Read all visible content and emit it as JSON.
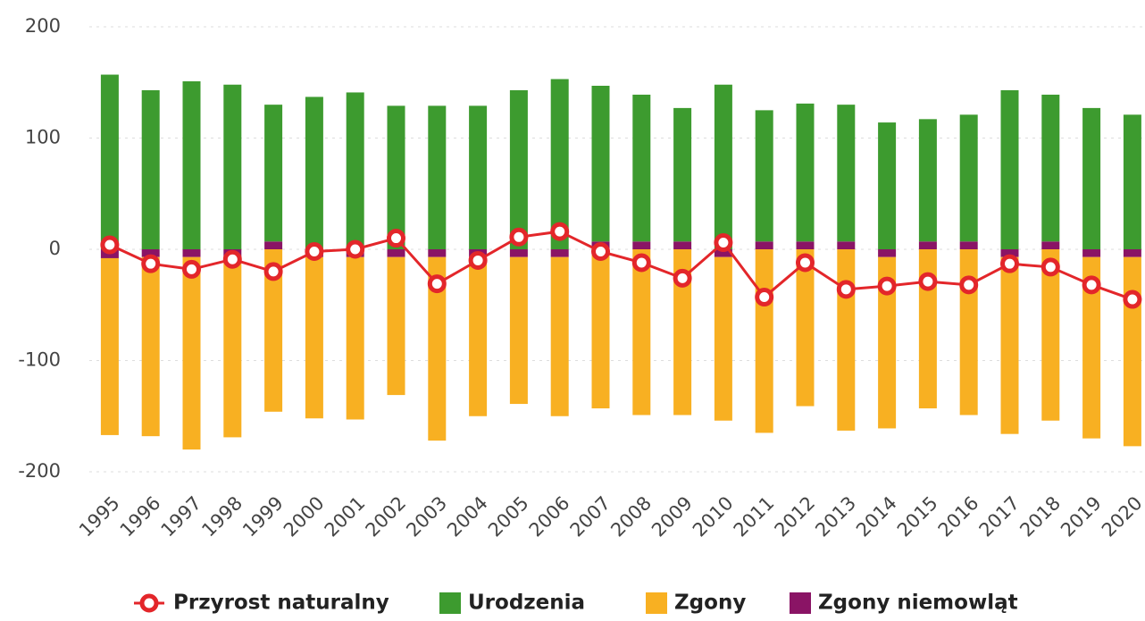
{
  "chart_data": {
    "type": "bar",
    "stacked": true,
    "categories": [
      "1995",
      "1996",
      "1997",
      "1998",
      "1999",
      "2000",
      "2001",
      "2002",
      "2003",
      "2004",
      "2005",
      "2006",
      "2007",
      "2008",
      "2009",
      "2010",
      "2011",
      "2012",
      "2013",
      "2014",
      "2015",
      "2016",
      "2017",
      "2018",
      "2019",
      "2020"
    ],
    "series": [
      {
        "name": "Przyrost naturalny",
        "type": "line",
        "color": "#e3262a",
        "values": [
          4,
          -13,
          -18,
          -9,
          -20,
          -2,
          0,
          10,
          -31,
          -10,
          11,
          16,
          -2,
          -12,
          -26,
          6,
          -43,
          -12,
          -36,
          -33,
          -29,
          -32,
          -13,
          -16,
          -32,
          -45
        ]
      },
      {
        "name": "Urodzenia",
        "color": "#3d9b2f",
        "values": [
          157,
          143,
          151,
          148,
          123,
          137,
          141,
          129,
          129,
          129,
          143,
          153,
          140,
          132,
          120,
          148,
          118,
          124,
          123,
          114,
          110,
          114,
          143,
          132,
          127,
          121
        ]
      },
      {
        "name": "Zgony",
        "color": "#f8b022",
        "values": [
          -159,
          -161,
          -173,
          -162,
          -146,
          -145,
          -146,
          -124,
          -165,
          -143,
          -132,
          -143,
          -143,
          -149,
          -149,
          -147,
          -165,
          -141,
          -163,
          -154,
          -143,
          -149,
          -159,
          -154,
          -163,
          -170
        ]
      },
      {
        "name": "Zgony niemowląt",
        "color": "#8a1465",
        "values": [
          -8,
          -7,
          -7,
          -7,
          7,
          -7,
          -7,
          -7,
          -7,
          -7,
          -7,
          -7,
          7,
          7,
          7,
          -7,
          7,
          7,
          7,
          -7,
          7,
          7,
          -7,
          7,
          -7,
          -7
        ]
      }
    ],
    "ylim": [
      -200,
      200
    ],
    "yticks": [
      -200,
      -100,
      0,
      100,
      200
    ],
    "grid": true
  }
}
